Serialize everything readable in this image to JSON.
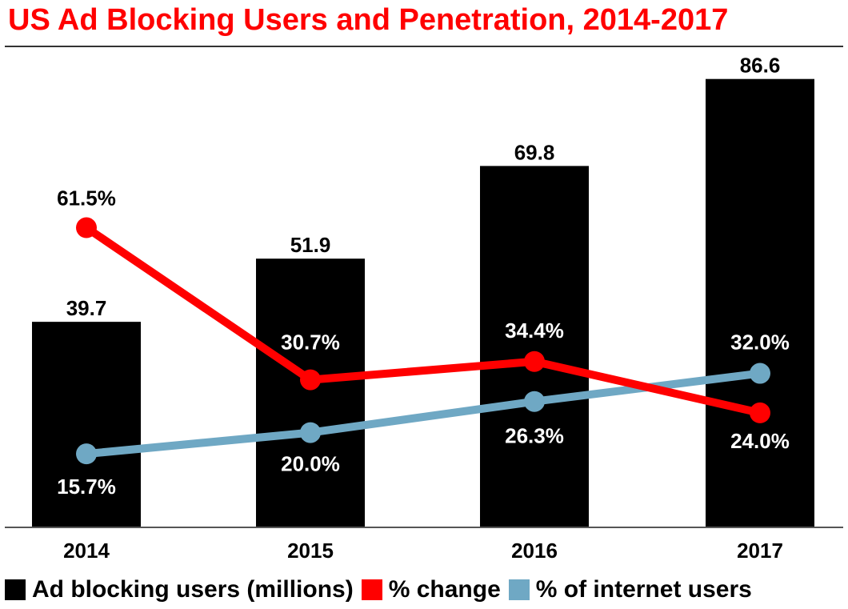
{
  "chart_data": {
    "type": "bar",
    "title": "US Ad Blocking Users and Penetration, 2014-2017",
    "categories": [
      "2014",
      "2015",
      "2016",
      "2017"
    ],
    "series": [
      {
        "name": "Ad blocking users (millions)",
        "kind": "bar",
        "values": [
          39.7,
          51.9,
          69.8,
          86.6
        ],
        "labels": [
          "39.7",
          "51.9",
          "69.8",
          "86.6"
        ],
        "color": "#000000"
      },
      {
        "name": "% change",
        "kind": "line",
        "values": [
          61.5,
          30.7,
          34.4,
          24.0
        ],
        "labels": [
          "61.5%",
          "30.7%",
          "34.4%",
          "24.0%"
        ],
        "color": "#ff0000"
      },
      {
        "name": "% of internet users",
        "kind": "line",
        "values": [
          15.7,
          20.0,
          26.3,
          32.0
        ],
        "labels": [
          "15.7%",
          "20.0%",
          "26.3%",
          "32.0%"
        ],
        "color": "#6fa8c4"
      }
    ],
    "xlabel": "",
    "ylabel": "",
    "grid": false,
    "legend_position": "bottom"
  }
}
